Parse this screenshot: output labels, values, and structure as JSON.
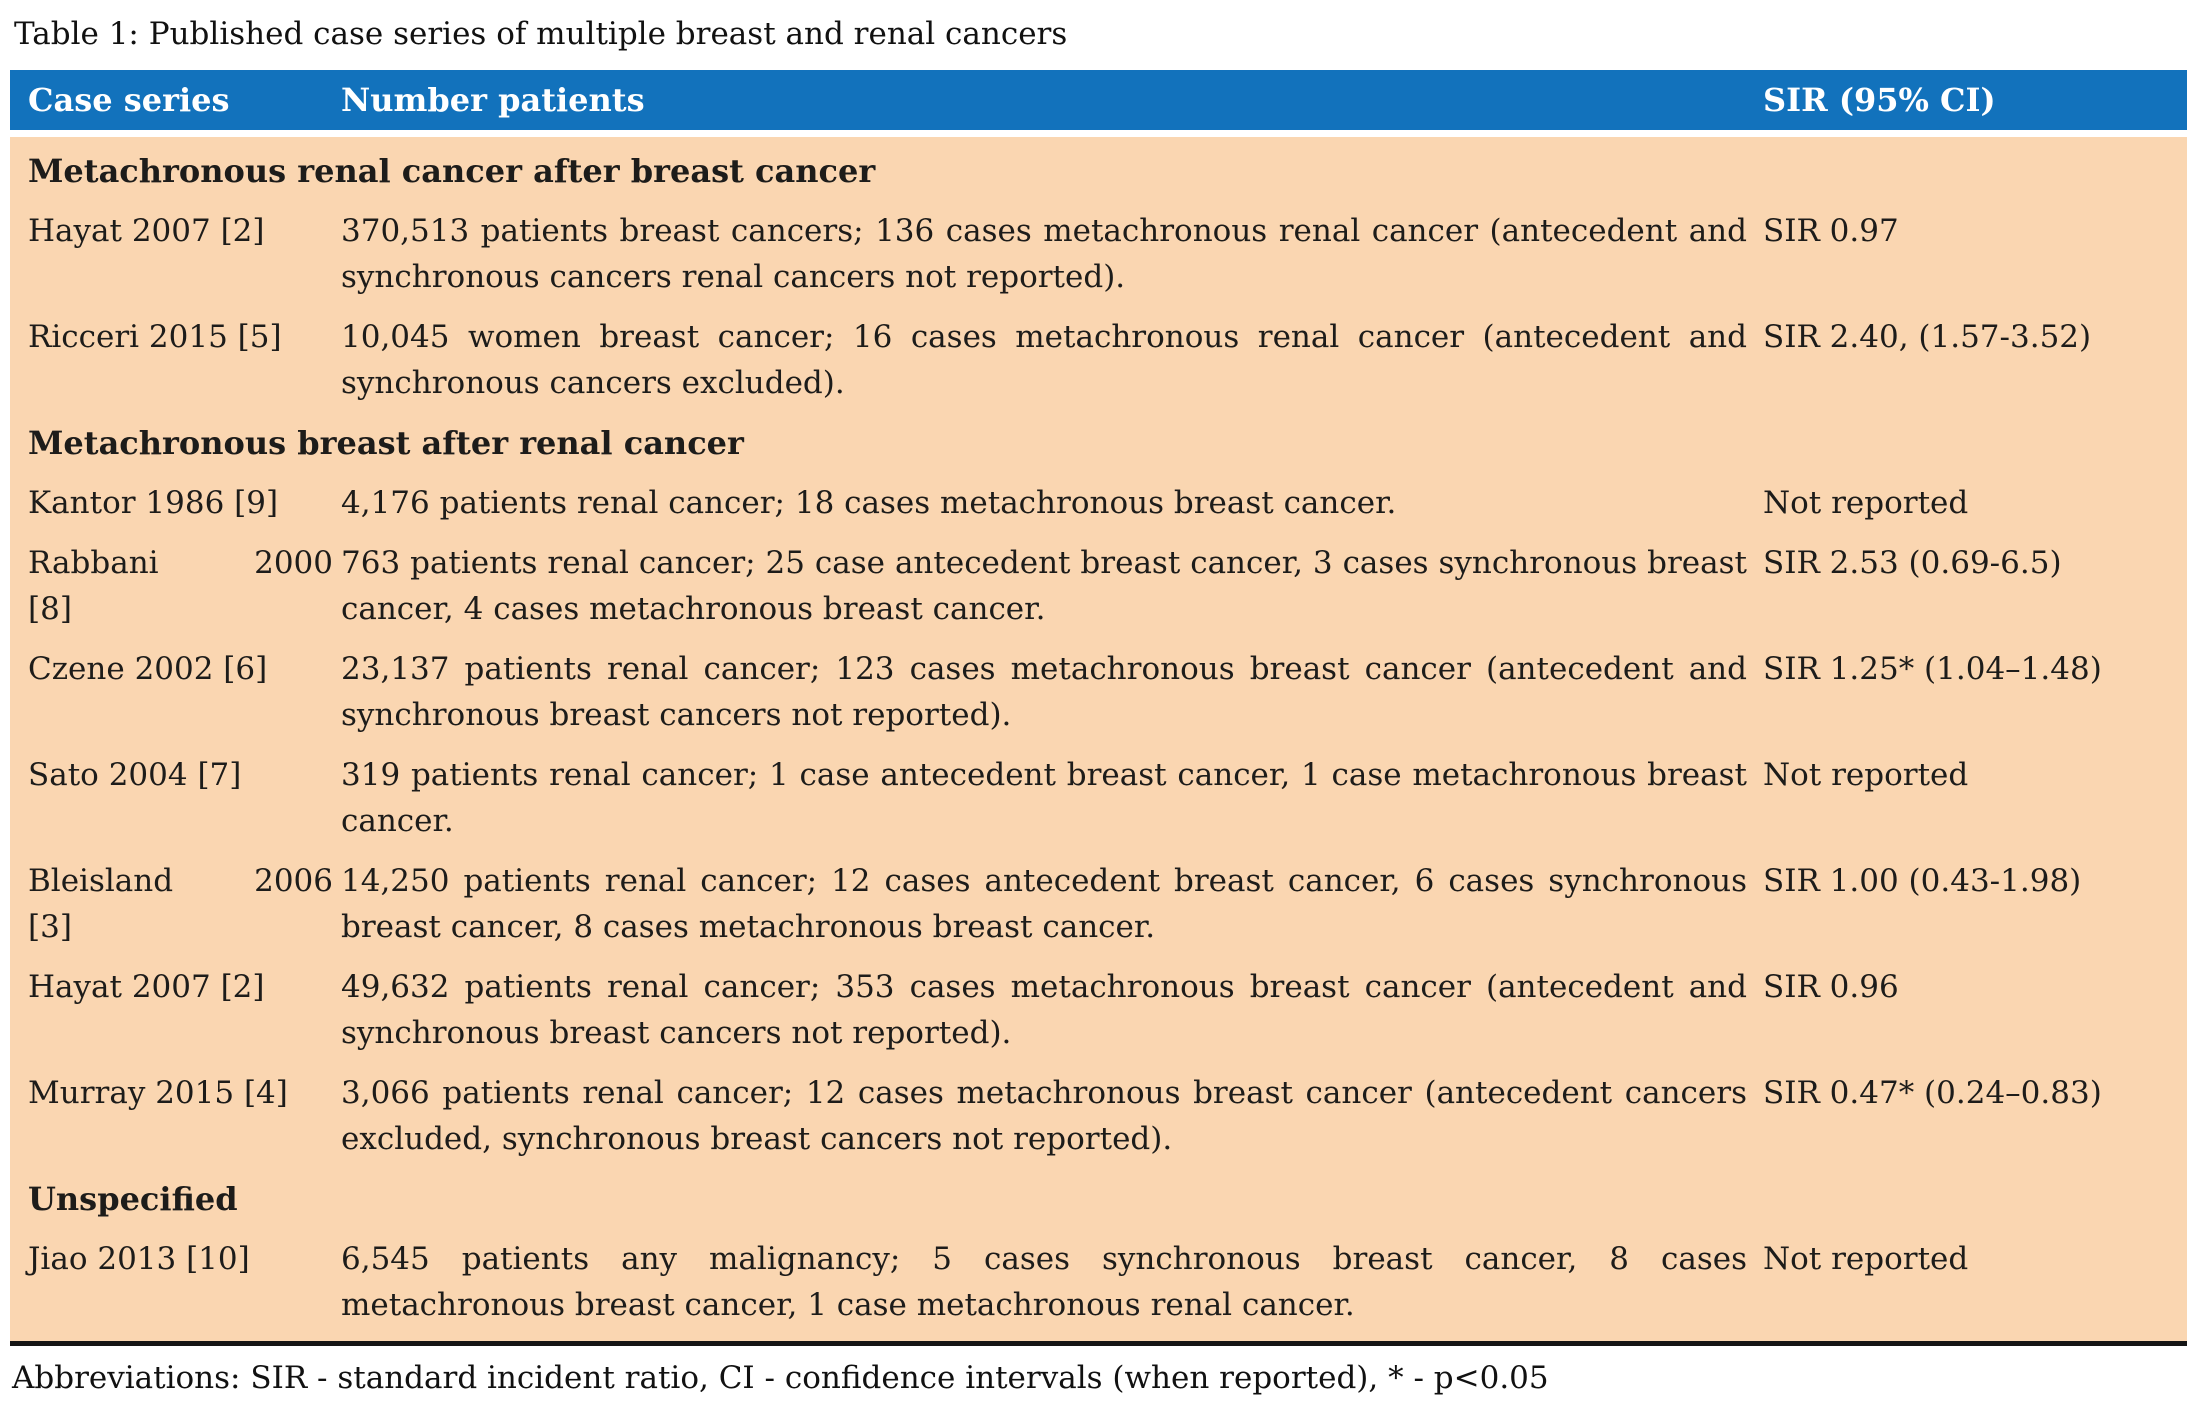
{
  "caption": "Table 1: Published case series of multiple breast and renal cancers",
  "colors": {
    "header_bg": "#1272bc",
    "body_bg": "#fad6b1"
  },
  "table": {
    "columns": [
      "Case series",
      "Number patients",
      "SIR (95% CI)"
    ],
    "sections": [
      {
        "heading": "Metachronous renal cancer after breast cancer",
        "rows": [
          {
            "case_series": "Hayat 2007 [2]",
            "number_patients": "370,513 patients breast cancers; 136 cases metachronous renal cancer (antecedent and synchronous cancers renal cancers not reported).",
            "sir": "SIR 0.97"
          },
          {
            "case_series": "Ricceri 2015 [5]",
            "number_patients": "10,045 women breast cancer; 16 cases metachronous renal cancer (antecedent and synchronous cancers excluded).",
            "sir": "SIR 2.40, (1.57-3.52)"
          }
        ]
      },
      {
        "heading": "Metachronous breast after renal cancer",
        "rows": [
          {
            "case_series": "Kantor 1986 [9]",
            "number_patients": "4,176 patients renal cancer; 18 cases metachronous breast cancer.",
            "sir": "Not reported"
          },
          {
            "case_series": "Rabbani 2000\n[8]",
            "number_patients": "763 patients renal cancer; 25 case antecedent breast cancer, 3 cases synchronous breast cancer, 4 cases metachronous breast cancer.",
            "sir": "SIR 2.53 (0.69-6.5)"
          },
          {
            "case_series": "Czene 2002 [6]",
            "number_patients": "23,137 patients renal cancer; 123 cases metachronous breast cancer (antecedent and synchronous breast cancers not reported).",
            "sir": "SIR 1.25* (1.04–1.48)"
          },
          {
            "case_series": "Sato 2004 [7]",
            "number_patients": "319 patients renal cancer; 1 case antecedent breast cancer, 1 case metachronous breast cancer.",
            "sir": "Not reported"
          },
          {
            "case_series": "Bleisland 2006\n[3]",
            "number_patients": "14,250 patients renal cancer; 12 cases antecedent breast cancer, 6 cases synchronous breast cancer, 8 cases metachronous breast cancer.",
            "sir": "SIR 1.00 (0.43-1.98)"
          },
          {
            "case_series": "Hayat 2007 [2]",
            "number_patients": "49,632 patients renal cancer; 353 cases metachronous breast cancer (antecedent and synchronous breast cancers not reported).",
            "sir": "SIR 0.96"
          },
          {
            "case_series": "Murray 2015 [4]",
            "number_patients": "3,066 patients renal cancer; 12 cases metachronous breast cancer (antecedent cancers excluded, synchronous breast cancers not reported).",
            "sir": "SIR 0.47* (0.24–0.83)"
          }
        ]
      },
      {
        "heading": "Unspecified",
        "rows": [
          {
            "case_series": "Jiao 2013 [10]",
            "number_patients": "6,545 patients any malignancy; 5 cases synchronous breast cancer, 8 cases metachronous breast cancer, 1 case metachronous renal cancer.",
            "sir": "Not reported"
          }
        ]
      }
    ]
  },
  "footnote": "Abbreviations: SIR - standard incident ratio, CI - confidence intervals (when reported), * - p<0.05"
}
